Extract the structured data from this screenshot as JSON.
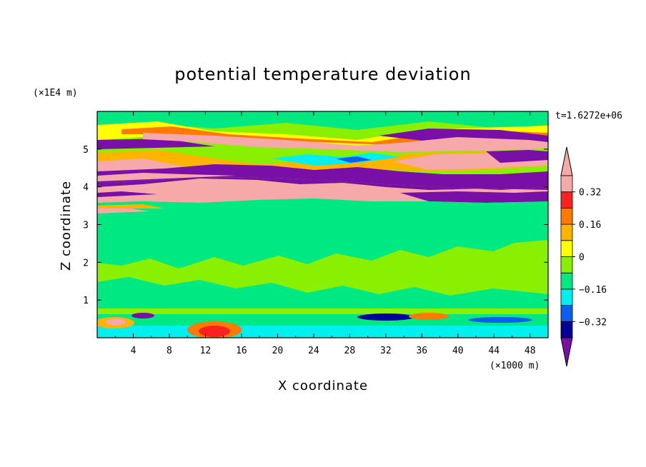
{
  "chart_data": {
    "type": "heatmap",
    "title": "potential temperature deviation",
    "xlabel": "X coordinate",
    "ylabel": "Z coordinate",
    "x_unit": "(×1000 m)",
    "y_unit": "(×1E4 m)",
    "time_label": "t=1.6272e+06",
    "xlim": [
      0,
      50
    ],
    "ylim": [
      0,
      6
    ],
    "x_ticks": [
      "4",
      "8",
      "12",
      "16",
      "20",
      "24",
      "28",
      "32",
      "36",
      "40",
      "44",
      "48"
    ],
    "y_ticks": [
      "1",
      "2",
      "3",
      "4",
      "5"
    ],
    "colorbar": {
      "levels": [
        -0.4,
        -0.32,
        -0.24,
        -0.16,
        -0.08,
        0,
        0.08,
        0.16,
        0.24,
        0.32,
        0.4
      ],
      "labels": [
        "0.32",
        "0.16",
        "0",
        "−0.16",
        "−0.32"
      ],
      "label_values": [
        0.32,
        0.16,
        0,
        -0.16,
        -0.32
      ],
      "colors_bottom_to_top": [
        "#7a0fa8",
        "#00009a",
        "#0a5ff0",
        "#00f0f0",
        "#00e882",
        "#88f000",
        "#ffff00",
        "#ffb400",
        "#ff7a00",
        "#ff2020",
        "#f7a8a8"
      ],
      "extend": "both"
    },
    "field_summary": {
      "background_color": "#88f000",
      "bands": [
        {
          "z": 5.15,
          "color": "#7a0fa8"
        },
        {
          "z": 5.4,
          "color": "#f7a8a8"
        },
        {
          "z": 4.6,
          "color": "#f7a8a8"
        },
        {
          "z": 4.3,
          "color": "#7a0fa8"
        },
        {
          "z": 4.0,
          "color": "#7a0fa8"
        },
        {
          "z": 3.85,
          "color": "#f7a8a8"
        },
        {
          "z": 3.35,
          "color": "#f7a8a8"
        },
        {
          "z": 0.55,
          "color": "#7a0fa8"
        }
      ]
    }
  }
}
